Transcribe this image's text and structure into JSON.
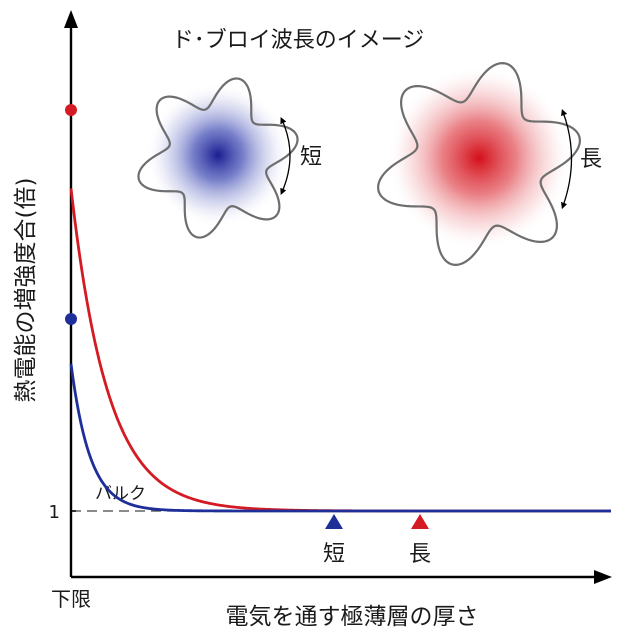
{
  "title": "ド･ブロイ波長のイメージ",
  "y_axis_label": "熱電能の増強度合(倍)",
  "x_axis_label": "電気を通す極薄層の厚さ",
  "x_origin_label": "下限",
  "bulk_label": "バルク",
  "y_tick_label": "1",
  "short_label": "短",
  "long_label": "長",
  "colors": {
    "short": "#1e2f9a",
    "long": "#d41a22",
    "axis": "#000000",
    "outline": "#6e6e6e"
  },
  "chart_data": {
    "type": "line",
    "series": [
      {
        "name": "短",
        "color": "#1e2f9a",
        "start_value": 3.6,
        "decay": 0.052,
        "marker": "start-dot",
        "end_marker": "triangle"
      },
      {
        "name": "長",
        "color": "#d41a22",
        "start_value": 6.7,
        "decay": 0.027,
        "marker": "start-dot",
        "end_marker": "triangle"
      }
    ],
    "baseline": 1,
    "grid": false
  }
}
